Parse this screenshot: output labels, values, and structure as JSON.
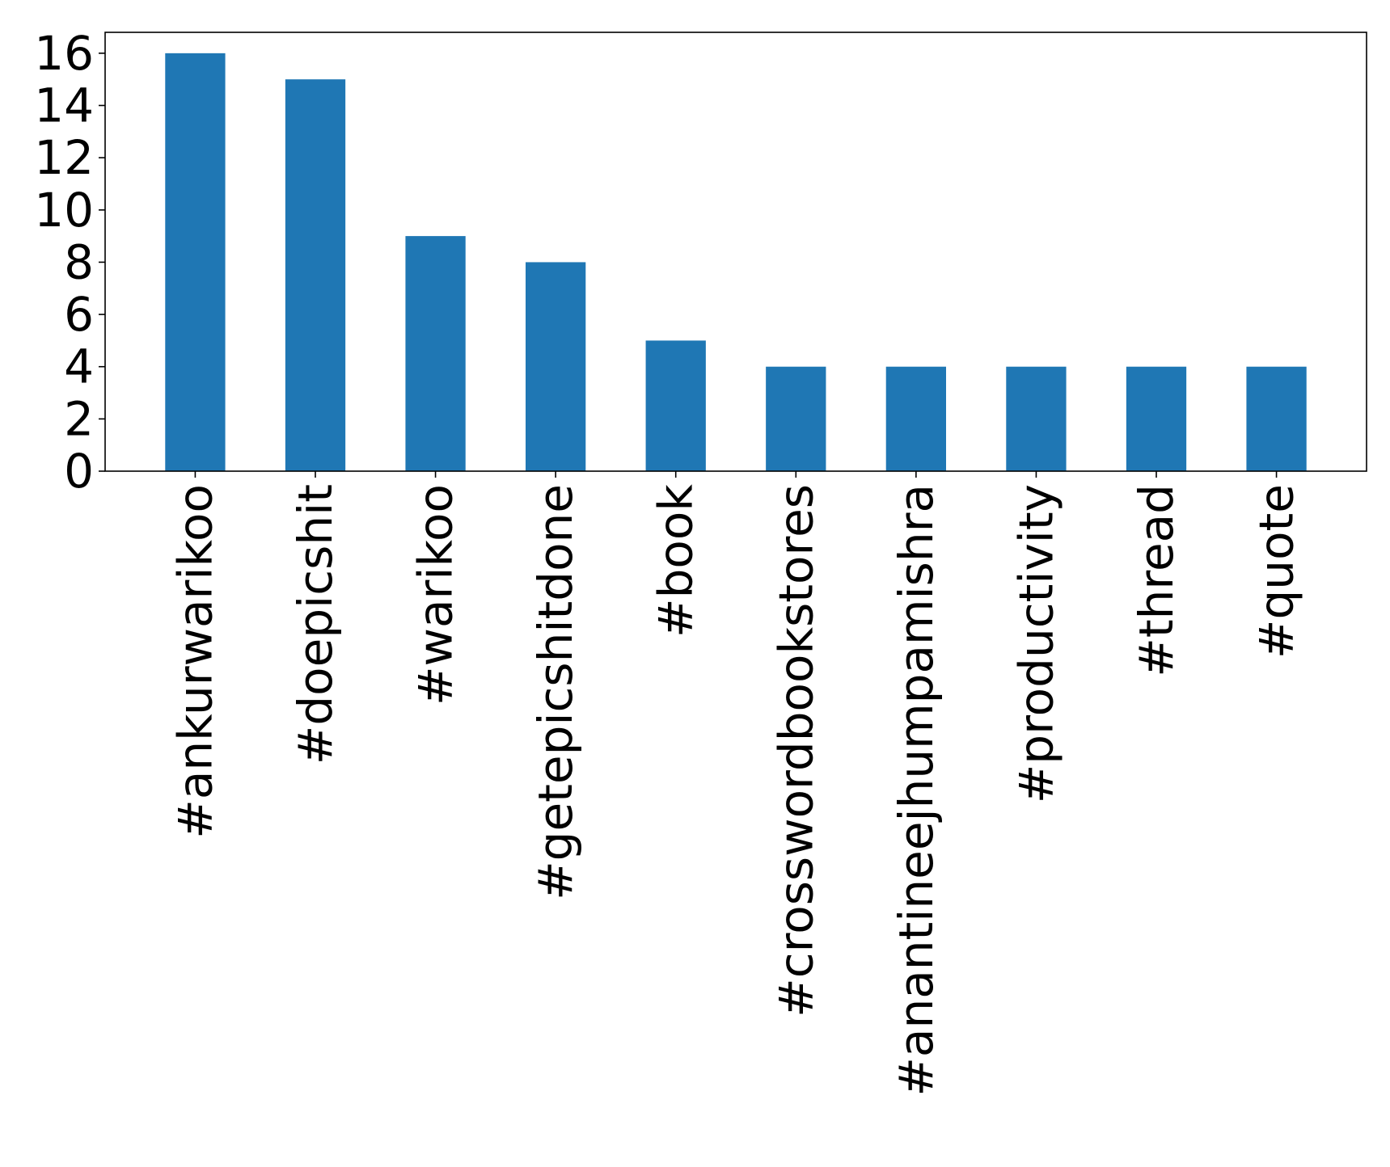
{
  "chart_data": {
    "type": "bar",
    "title": "",
    "xlabel": "",
    "ylabel": "",
    "categories": [
      "#ankurwarikoo",
      "#doepicshit",
      "#warikoo",
      "#getepicshitdone",
      "#book",
      "#crosswordbookstores",
      "#anantineejhumpamishra",
      "#productivity",
      "#thread",
      "#quote"
    ],
    "values": [
      16,
      15,
      9,
      8,
      5,
      4,
      4,
      4,
      4,
      4
    ],
    "ylim": [
      0,
      16.8
    ],
    "yticks": [
      0,
      2,
      4,
      6,
      8,
      10,
      12,
      14,
      16
    ],
    "bar_color": "#1f77b4",
    "grid": false,
    "legend": "none"
  }
}
